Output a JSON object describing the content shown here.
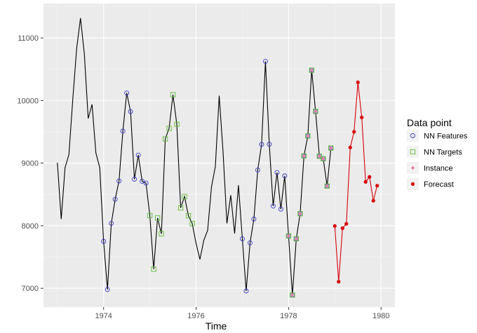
{
  "chart_data": {
    "type": "line",
    "title": "",
    "xlabel": "Time",
    "ylabel": "",
    "xlim": [
      1972.7,
      1980.3
    ],
    "ylim": [
      6700,
      11550
    ],
    "x_ticks": [
      1974,
      1976,
      1978,
      1980
    ],
    "x_tick_labels": [
      "1974",
      "1976",
      "1978",
      "1980"
    ],
    "y_ticks": [
      7000,
      8000,
      9000,
      10000,
      11000
    ],
    "y_tick_labels": [
      "7000",
      "8000",
      "9000",
      "10000",
      "11000"
    ],
    "grid": true,
    "background_panel": "#EBEBEB",
    "start_time": 1973.0,
    "step": 0.08333,
    "series": [
      {
        "role": "history",
        "color": "#000000",
        "values": [
          9007,
          8106,
          8928,
          9137,
          10017,
          10826,
          11317,
          10744,
          9713,
          9938,
          9161,
          8927,
          7750,
          6981,
          8038,
          8422,
          8714,
          9512,
          10120,
          9823,
          8743,
          9129,
          8710,
          8680,
          8162,
          7306,
          8124,
          7870,
          9387,
          9556,
          10093,
          9620,
          8285,
          8466,
          8160,
          8034,
          7717,
          7461,
          7767,
          7925,
          8623,
          8945,
          10078,
          9179,
          8037,
          8488,
          7874,
          8647,
          7792,
          6957,
          7726,
          8106,
          8890,
          9299,
          10625,
          9302,
          8314,
          8850,
          8265,
          8796,
          7836,
          6892,
          7791,
          8192,
          9115,
          9434,
          10484,
          9827,
          9110,
          9070,
          8633,
          9240
        ]
      },
      {
        "role": "forecast",
        "name": "Forecast",
        "color": "#D7000A",
        "start_index": 72,
        "values": [
          7995,
          7106,
          7960,
          8030,
          9250,
          9500,
          10290,
          9730,
          8700,
          8780,
          8400,
          8640
        ]
      }
    ],
    "point_layers": [
      {
        "name": "NN Features",
        "marker": "circle-open",
        "color": "#3B3BC4",
        "indices": [
          12,
          13,
          14,
          15,
          16,
          17,
          18,
          19,
          20,
          21,
          22,
          23,
          48,
          49,
          50,
          51,
          52,
          53,
          54,
          55,
          56,
          57,
          58,
          59,
          60,
          61,
          62,
          63,
          64,
          65,
          66,
          67,
          68,
          69,
          70,
          71
        ]
      },
      {
        "name": "NN Targets",
        "marker": "square-open",
        "color": "#6CBF44",
        "indices": [
          24,
          25,
          26,
          27,
          28,
          29,
          30,
          31,
          32,
          33,
          34,
          35,
          60,
          61,
          62,
          63,
          64,
          65,
          66,
          67,
          68,
          69,
          70,
          71
        ]
      },
      {
        "name": "Instance",
        "marker": "diamond",
        "color": "#E07BA6",
        "indices": [
          60,
          61,
          62,
          63,
          64,
          65,
          66,
          67,
          68,
          69,
          70,
          71
        ]
      },
      {
        "name": "Forecast",
        "marker": "circle-filled",
        "color": "#D7000A",
        "indices": "forecast"
      }
    ],
    "legend": {
      "title": "Data point",
      "position": "right",
      "entries": [
        {
          "label": "NN Features",
          "marker": "circle-open",
          "color": "#3B3BC4"
        },
        {
          "label": "NN Targets",
          "marker": "square-open",
          "color": "#6CBF44"
        },
        {
          "label": "Instance",
          "marker": "diamond",
          "color": "#E07BA6"
        },
        {
          "label": "Forecast",
          "marker": "circle-filled",
          "color": "#D7000A"
        }
      ]
    }
  }
}
